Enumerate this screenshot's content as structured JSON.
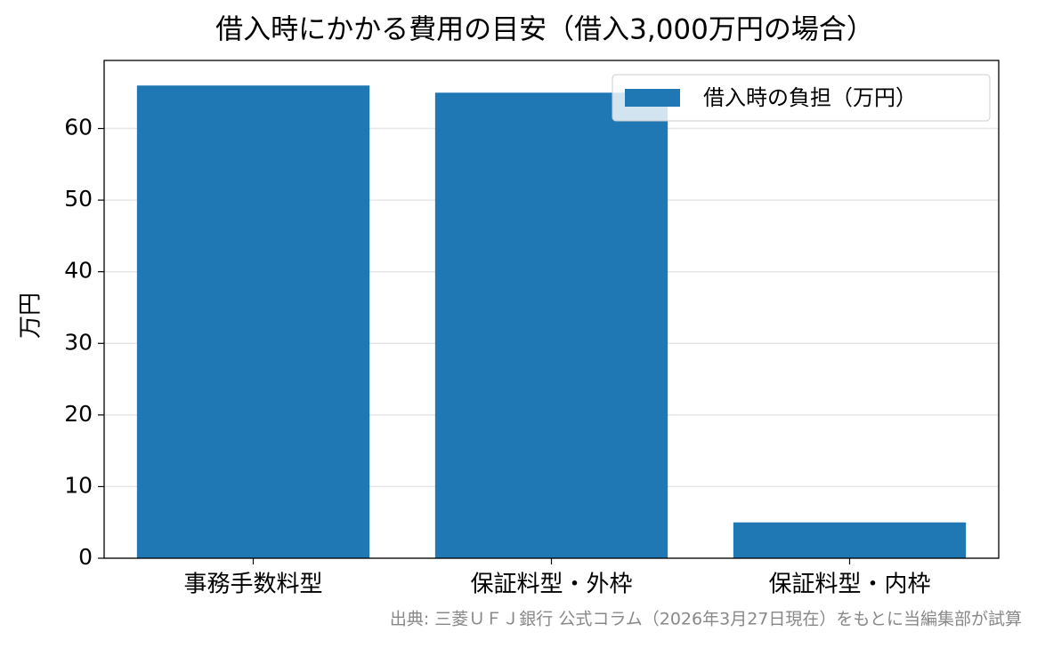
{
  "chart_data": {
    "type": "bar",
    "title": "借入時にかかる費用の目安（借入3,000万円の場合）",
    "ylabel": "万円",
    "categories": [
      "事務手数料型",
      "保証料型・外枠",
      "保証料型・内枠"
    ],
    "series": [
      {
        "name": "借入時の負担（万円）",
        "color": "#1f77b4",
        "values": [
          66,
          65,
          5
        ]
      }
    ],
    "ylim": [
      0,
      69.5
    ],
    "yticks": [
      0,
      10,
      20,
      30,
      40,
      50,
      60
    ],
    "grid": true,
    "legend": "upper-right",
    "source": "出典: 三菱ＵＦＪ銀行 公式コラム（2026年3月27日現在）をもとに当編集部が試算"
  }
}
